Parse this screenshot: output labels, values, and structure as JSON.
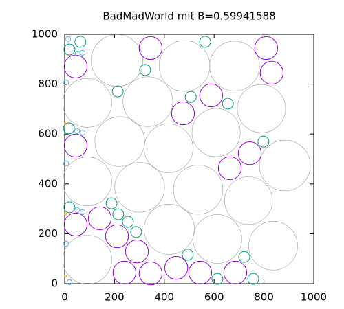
{
  "chart_data": {
    "type": "bubble",
    "title": "BadMadWorld mit B=0.59941588",
    "xlim": [
      0,
      1000
    ],
    "ylim": [
      0,
      1000
    ],
    "xticks": [
      0,
      200,
      400,
      600,
      800,
      1000
    ],
    "yticks": [
      0,
      200,
      400,
      600,
      800,
      1000
    ],
    "series": [
      {
        "color": "#a0a0a0",
        "x": [
          210,
          481,
          682,
          91,
          334,
          790,
          221,
          417,
          608,
          91,
          301,
          536,
          738,
          884,
          420,
          613,
          837,
          91
        ],
        "values": [
          895,
          873,
          873,
          725,
          730,
          702,
          570,
          543,
          606,
          410,
          386,
          377,
          333,
          474,
          218,
          179,
          152,
          96
        ],
        "r": [
          104,
          102,
          100,
          98,
          100,
          97,
          100,
          98,
          97,
          98,
          100,
          99,
          96,
          102,
          101,
          98,
          98,
          98
        ]
      },
      {
        "color": "#9400d3",
        "x": [
          345,
          809,
          44,
          831,
          588,
          475,
          44,
          663,
          743,
          141,
          44,
          210,
          290,
          240,
          345,
          448,
          544,
          685
        ],
        "values": [
          945,
          945,
          871,
          846,
          755,
          683,
          554,
          463,
          523,
          262,
          237,
          190,
          129,
          44,
          41,
          63,
          44,
          44
        ],
        "r": [
          46,
          46,
          46,
          46,
          46,
          46,
          46,
          46,
          46,
          46,
          46,
          46,
          46,
          46,
          46,
          46,
          46,
          46
        ]
      },
      {
        "color": "#009e73",
        "x": [
          63,
          564,
          19,
          323,
          213,
          506,
          655,
          17,
          798,
          188,
          215,
          254,
          287,
          19,
          494,
          721,
          613,
          757
        ],
        "values": [
          970,
          970,
          939,
          857,
          771,
          749,
          722,
          623,
          570,
          322,
          278,
          248,
          207,
          306,
          116,
          107,
          19,
          19
        ],
        "r": [
          22,
          22,
          22,
          22,
          22,
          22,
          22,
          22,
          22,
          22,
          22,
          22,
          22,
          22,
          22,
          22,
          22,
          22
        ]
      },
      {
        "color": "#56b4e9",
        "x": [
          14,
          52,
          72,
          6,
          50,
          72,
          6,
          50,
          72,
          6,
          19
        ],
        "values": [
          981,
          923,
          926,
          807,
          612,
          606,
          482,
          295,
          287,
          160,
          6
        ],
        "r": [
          10,
          10,
          10,
          10,
          10,
          10,
          10,
          10,
          10,
          10,
          10
        ]
      },
      {
        "color": "#e69f00",
        "x": [
          3,
          3,
          3
        ],
        "values": [
          642,
          280,
          30
        ],
        "r": [
          4,
          4,
          4
        ]
      }
    ]
  }
}
